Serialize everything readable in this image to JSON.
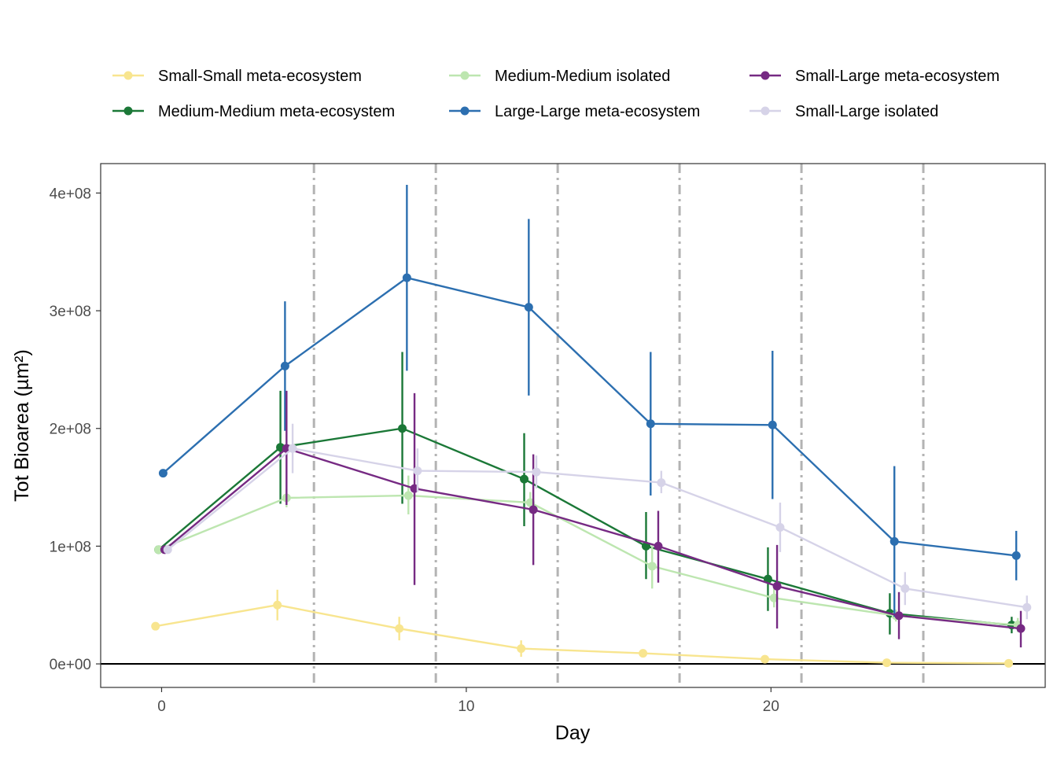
{
  "chart_data": {
    "type": "line",
    "title": "",
    "xlabel": "Day",
    "ylabel": "Tot Bioarea (µm²)",
    "xlim": [
      -2,
      29
    ],
    "ylim": [
      -20000000,
      425000000
    ],
    "x_ticks": [
      0,
      10,
      20
    ],
    "y_ticks": [
      0,
      100000000,
      200000000,
      300000000,
      400000000
    ],
    "x_tick_labels": [
      "0",
      "10",
      "20"
    ],
    "y_tick_labels": [
      "0e+00",
      "1e+08",
      "2e+08",
      "3e+08",
      "4e+08"
    ],
    "vertical_reference_lines": [
      5,
      9,
      13,
      17,
      21,
      25
    ],
    "horizontal_reference_line": 0,
    "grid": false,
    "legend_position": "top",
    "series": [
      {
        "name": "Small-Small meta-ecosystem",
        "color": "#f8e58f",
        "x": [
          -0.2,
          3.8,
          7.8,
          11.8,
          15.8,
          19.8,
          23.8,
          27.8
        ],
        "y": [
          32000000,
          50000000,
          30000000,
          13000000,
          9000000,
          4000000,
          1000000,
          500000
        ],
        "y_low": [
          32000000,
          37000000,
          20000000,
          6000000,
          6000000,
          2000000,
          0,
          0
        ],
        "y_high": [
          32000000,
          63000000,
          40000000,
          20000000,
          12000000,
          6000000,
          2000000,
          1000000
        ]
      },
      {
        "name": "Medium-Medium meta-ecosystem",
        "color": "#1b7837",
        "x": [
          -0.1,
          3.9,
          7.9,
          11.9,
          15.9,
          19.9,
          23.9,
          27.9
        ],
        "y": [
          97000000,
          184000000,
          200000000,
          157000000,
          100000000,
          72000000,
          43000000,
          33000000
        ],
        "y_low": [
          96000000,
          136000000,
          136000000,
          117000000,
          72000000,
          45000000,
          25000000,
          26000000
        ],
        "y_high": [
          98000000,
          232000000,
          265000000,
          196000000,
          129000000,
          99000000,
          60000000,
          40000000
        ]
      },
      {
        "name": "Medium-Medium isolated",
        "color": "#bde6b0",
        "x": [
          -0.1,
          4.1,
          8.1,
          12.1,
          16.1,
          20.1,
          24.1,
          28.1
        ],
        "y": [
          97000000,
          141000000,
          143000000,
          137000000,
          83000000,
          56000000,
          41000000,
          33000000
        ],
        "y_low": [
          96000000,
          133000000,
          127000000,
          128000000,
          64000000,
          48000000,
          36000000,
          27000000
        ],
        "y_high": [
          98000000,
          149000000,
          160000000,
          146000000,
          102000000,
          64000000,
          46000000,
          39000000
        ]
      },
      {
        "name": "Large-Large meta-ecosystem",
        "color": "#2c6fb0",
        "x": [
          0.05,
          4.05,
          8.05,
          12.05,
          16.05,
          20.05,
          24.05,
          28.05
        ],
        "y": [
          162000000,
          253000000,
          328000000,
          303000000,
          204000000,
          203000000,
          104000000,
          92000000
        ],
        "y_low": [
          162000000,
          198000000,
          249000000,
          228000000,
          143000000,
          140000000,
          40000000,
          71000000
        ],
        "y_high": [
          162000000,
          308000000,
          407000000,
          378000000,
          265000000,
          266000000,
          168000000,
          113000000
        ]
      },
      {
        "name": "Small-Large meta-ecosystem",
        "color": "#762a83",
        "x": [
          0.1,
          4.1,
          8.3,
          12.2,
          16.3,
          20.2,
          24.2,
          28.2
        ],
        "y": [
          97000000,
          183000000,
          149000000,
          131000000,
          100000000,
          66000000,
          41000000,
          30000000
        ],
        "y_low": [
          96000000,
          135000000,
          67000000,
          84000000,
          69000000,
          30000000,
          21000000,
          14000000
        ],
        "y_high": [
          98000000,
          232000000,
          230000000,
          178000000,
          130000000,
          101000000,
          61000000,
          45000000
        ]
      },
      {
        "name": "Small-Large isolated",
        "color": "#d6d3e8",
        "x": [
          0.2,
          4.3,
          8.4,
          12.3,
          16.4,
          20.3,
          24.4,
          28.4
        ],
        "y": [
          97000000,
          183000000,
          164000000,
          163000000,
          154000000,
          116000000,
          64000000,
          48000000
        ],
        "y_low": [
          96000000,
          162000000,
          146000000,
          149000000,
          145000000,
          95000000,
          50000000,
          38000000
        ],
        "y_high": [
          98000000,
          204000000,
          183000000,
          177000000,
          164000000,
          137000000,
          78000000,
          58000000
        ]
      }
    ]
  }
}
